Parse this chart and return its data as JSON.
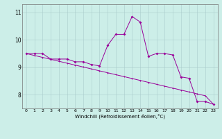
{
  "title": "",
  "xlabel": "Windchill (Refroidissement éolien,°C)",
  "background_color": "#cceee8",
  "line_color": "#990099",
  "grid_color": "#aacccc",
  "x": [
    0,
    1,
    2,
    3,
    4,
    5,
    6,
    7,
    8,
    9,
    10,
    11,
    12,
    13,
    14,
    15,
    16,
    17,
    18,
    19,
    20,
    21,
    22,
    23
  ],
  "y_actual": [
    9.5,
    9.5,
    9.5,
    9.3,
    9.3,
    9.3,
    9.2,
    9.2,
    9.1,
    9.05,
    9.8,
    10.2,
    10.2,
    10.85,
    10.65,
    9.4,
    9.5,
    9.5,
    9.45,
    8.65,
    8.6,
    7.75,
    7.75,
    7.65
  ],
  "y_trend": [
    9.5,
    9.43,
    9.36,
    9.29,
    9.22,
    9.15,
    9.08,
    9.01,
    8.94,
    8.87,
    8.8,
    8.73,
    8.66,
    8.59,
    8.52,
    8.45,
    8.38,
    8.31,
    8.24,
    8.17,
    8.1,
    8.03,
    7.96,
    7.65
  ],
  "ylim": [
    7.5,
    11.3
  ],
  "yticks": [
    8,
    9,
    10,
    11
  ],
  "xlim": [
    -0.5,
    23.5
  ],
  "xtick_fontsize": 4.5,
  "ytick_fontsize": 5.5,
  "xlabel_fontsize": 5.0
}
